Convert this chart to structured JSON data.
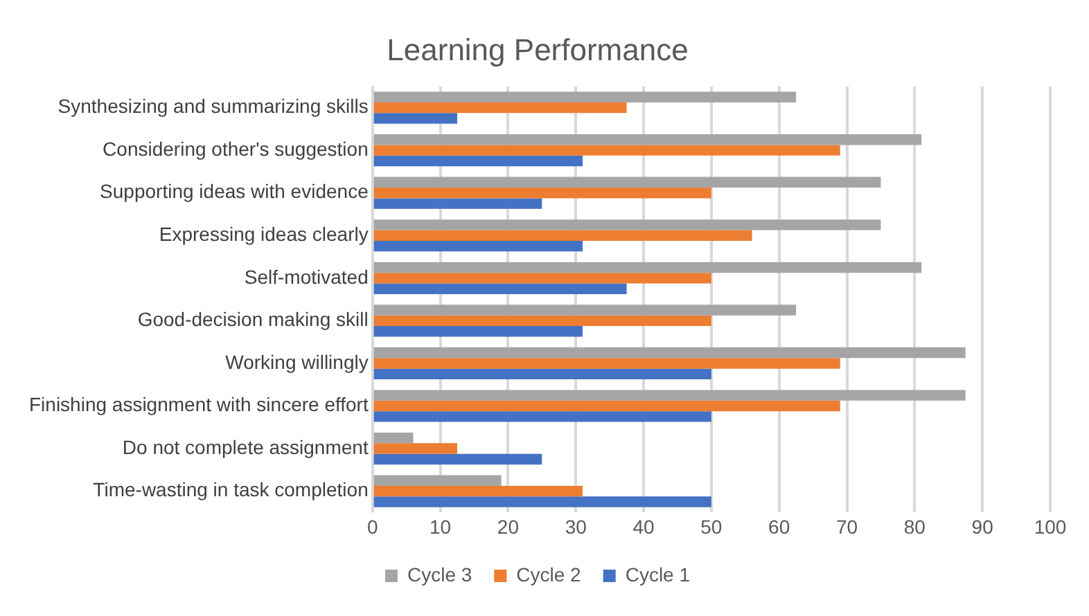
{
  "chart_data": {
    "type": "bar",
    "orientation": "horizontal",
    "title": "Learning Performance",
    "categories": [
      "Synthesizing and summarizing skills",
      "Considering other's suggestion",
      "Supporting ideas with evidence",
      "Expressing ideas clearly",
      "Self-motivated",
      "Good-decision making skill",
      "Working willingly",
      "Finishing assignment with sincere effort",
      "Do not complete assignment",
      "Time-wasting in task completion"
    ],
    "series": [
      {
        "name": "Cycle 3",
        "color": "#a5a5a5",
        "values": [
          62.5,
          81,
          75,
          75,
          81,
          62.5,
          87.5,
          87.5,
          6,
          19
        ]
      },
      {
        "name": "Cycle 2",
        "color": "#ed7d31",
        "values": [
          37.5,
          69,
          50,
          56,
          50,
          50,
          69,
          69,
          12.5,
          31
        ]
      },
      {
        "name": "Cycle 1",
        "color": "#4472c4",
        "values": [
          12.5,
          31,
          25,
          31,
          37.5,
          31,
          50,
          50,
          25,
          50
        ]
      }
    ],
    "xlim": [
      0,
      100
    ],
    "xticks": [
      0,
      10,
      20,
      30,
      40,
      50,
      60,
      70,
      80,
      90,
      100
    ],
    "grid": "x",
    "legend": "bottom"
  }
}
